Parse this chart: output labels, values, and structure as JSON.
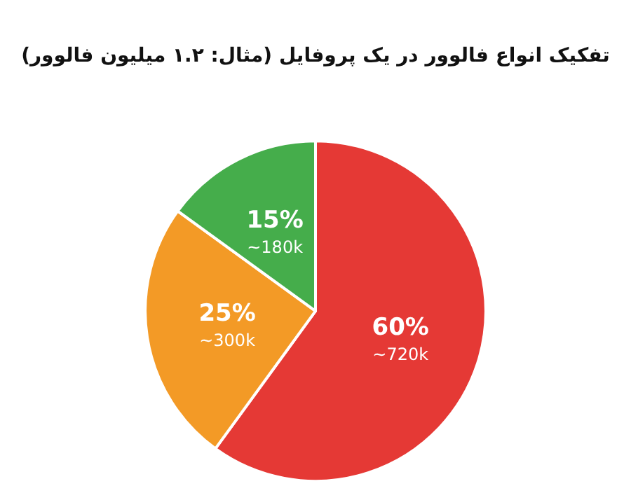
{
  "chart_data": {
    "type": "pie",
    "title": "تفکیک انواع فالوور در یک پروفایل (مثال: ۱.۲ میلیون فالوور)",
    "categories": [
      null,
      null,
      null
    ],
    "values": [
      60,
      25,
      15
    ],
    "colors": [
      "#e53935",
      "#f39a26",
      "#45ad4b"
    ],
    "value_labels": [
      "60%\n~720k",
      "25%\n~300k",
      "15%\n~180k"
    ]
  }
}
